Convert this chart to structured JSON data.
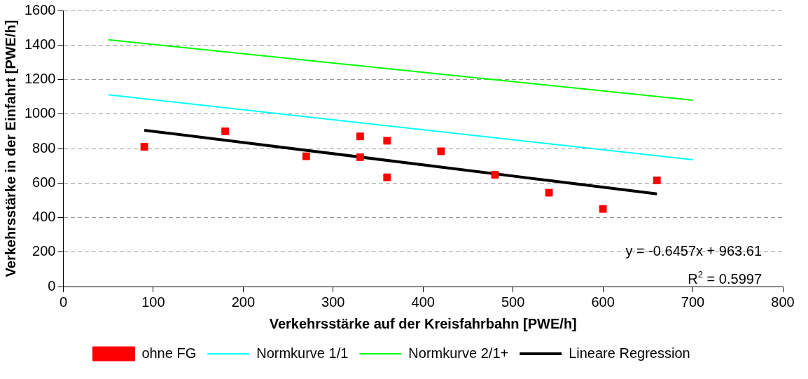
{
  "chart_data": {
    "type": "scatter",
    "xlabel": "Verkehrsstärke auf der Kreisfahrbahn [PWE/h]",
    "ylabel": "Verkehrsstärke in der Einfahrt [PWE/h]",
    "xlim": [
      0,
      800
    ],
    "xticks": [
      0,
      100,
      200,
      300,
      400,
      500,
      600,
      700,
      800
    ],
    "ylim": [
      0,
      1600
    ],
    "yticks": [
      0,
      200,
      400,
      600,
      800,
      1000,
      1200,
      1400,
      1600
    ],
    "grid": "y",
    "legend": "bottom",
    "series": [
      {
        "name": "ohne FG",
        "color": "#ff0000",
        "marker": "square",
        "x": [
          90,
          180,
          270,
          330,
          330,
          360,
          360,
          420,
          480,
          540,
          600,
          660
        ],
        "values": [
          810,
          900,
          755,
          870,
          750,
          845,
          633,
          784,
          648,
          544,
          450,
          615
        ]
      },
      {
        "name": "Normkurve 1/1",
        "color": "#00ffff",
        "type": "line",
        "x": [
          50,
          700
        ],
        "values": [
          1112,
          735
        ]
      },
      {
        "name": "Normkurve 2/1+",
        "color": "#00ff00",
        "type": "line",
        "x": [
          50,
          700
        ],
        "values": [
          1430,
          1080
        ]
      },
      {
        "name": "Lineare Regression",
        "color": "#000000",
        "type": "line",
        "x": [
          90,
          660
        ],
        "values": [
          906,
          537
        ]
      }
    ],
    "annotations": [
      "y = -0.6457x + 963.61",
      "R$^{2}$ = 0.5997"
    ]
  }
}
